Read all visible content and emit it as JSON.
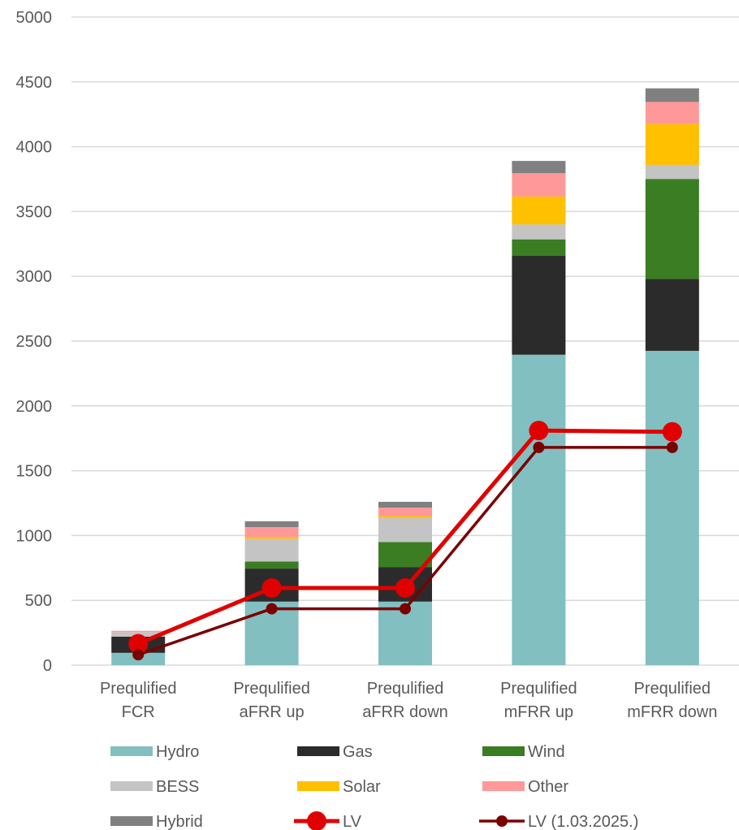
{
  "chart_data": {
    "type": "bar",
    "stacked": true,
    "categories": [
      [
        "Prequlified",
        "FCR"
      ],
      [
        "Prequlified",
        "aFRR up"
      ],
      [
        "Prequlified",
        "aFRR down"
      ],
      [
        "Prequlified",
        "mFRR up"
      ],
      [
        "Prequlified",
        "mFRR down"
      ]
    ],
    "ylim": [
      0,
      5000
    ],
    "yticks": [
      0,
      500,
      1000,
      1500,
      2000,
      2500,
      3000,
      3500,
      4000,
      4500,
      5000
    ],
    "grid": true,
    "legend_position": "bottom",
    "series": [
      {
        "name": "Hydro",
        "color": "#82BFC1",
        "values": [
          95,
          490,
          490,
          2395,
          2425
        ]
      },
      {
        "name": "Gas",
        "color": "#2B2B2B",
        "values": [
          125,
          255,
          265,
          765,
          555
        ]
      },
      {
        "name": "Wind",
        "color": "#3A7D22",
        "values": [
          0,
          55,
          195,
          125,
          770
        ]
      },
      {
        "name": "BESS",
        "color": "#C4C4C4",
        "values": [
          35,
          175,
          185,
          115,
          110
        ]
      },
      {
        "name": "Solar",
        "color": "#FFC000",
        "values": [
          0,
          15,
          15,
          215,
          315
        ]
      },
      {
        "name": "Other",
        "color": "#FF9999",
        "values": [
          10,
          75,
          65,
          180,
          170
        ]
      },
      {
        "name": "Hybrid",
        "color": "#808080",
        "values": [
          0,
          45,
          45,
          95,
          105
        ]
      }
    ],
    "lines": [
      {
        "name": "LV",
        "color": "#E00000",
        "values": [
          165,
          595,
          595,
          1810,
          1800
        ],
        "marker": "large"
      },
      {
        "name": "LV (1.03.2025.)",
        "color": "#7A0000",
        "values": [
          80,
          435,
          435,
          1680,
          1680
        ],
        "marker": "small"
      }
    ]
  }
}
